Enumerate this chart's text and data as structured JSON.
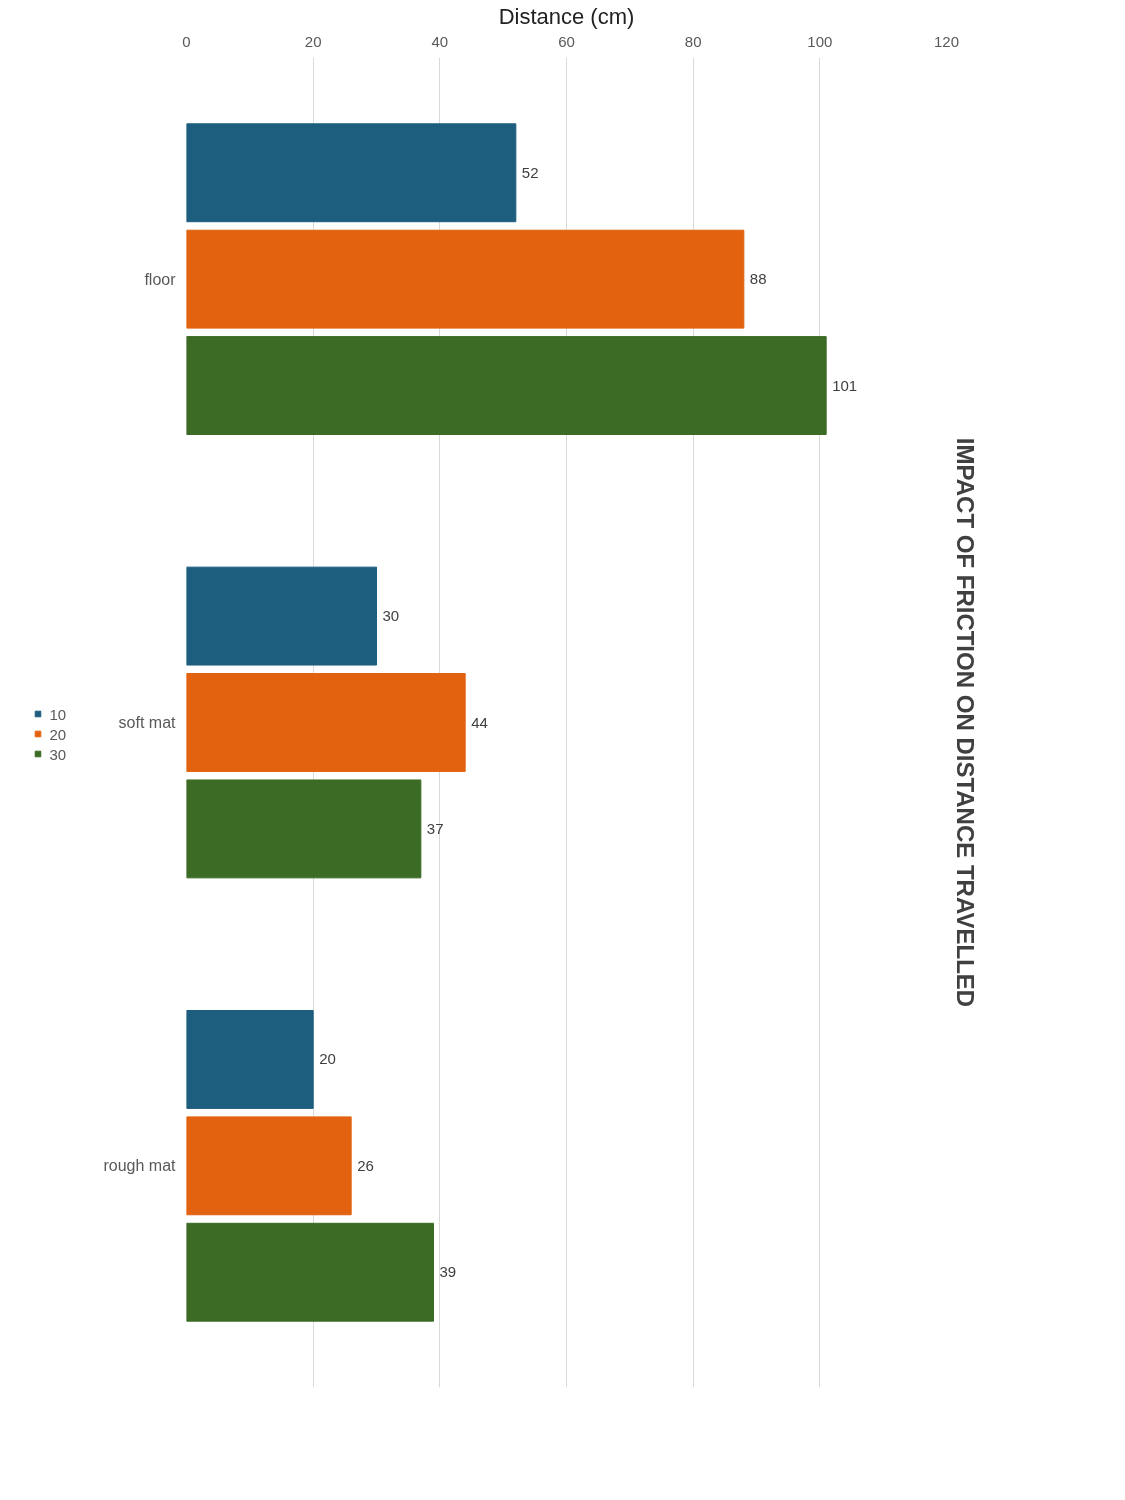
{
  "chart_data": {
    "type": "bar",
    "title": "IMPACT OF FRICTION ON DISTANCE TRAVELLED",
    "xlabel": "Distance (cm)",
    "orientation": "horizontal",
    "categories": [
      "floor",
      "soft mat",
      "rough mat"
    ],
    "series": [
      {
        "name": "10",
        "color": "#1d5e7e",
        "values": [
          52,
          30,
          20
        ]
      },
      {
        "name": "20",
        "color": "#e2620f",
        "values": [
          88,
          44,
          26
        ]
      },
      {
        "name": "30",
        "color": "#3b6b24",
        "values": [
          101,
          37,
          39
        ]
      }
    ],
    "xlim": [
      0,
      120
    ],
    "xticks": [
      0,
      20,
      40,
      60,
      80,
      100,
      120
    ],
    "grid": "x",
    "legend": "left",
    "data_labels": true
  }
}
